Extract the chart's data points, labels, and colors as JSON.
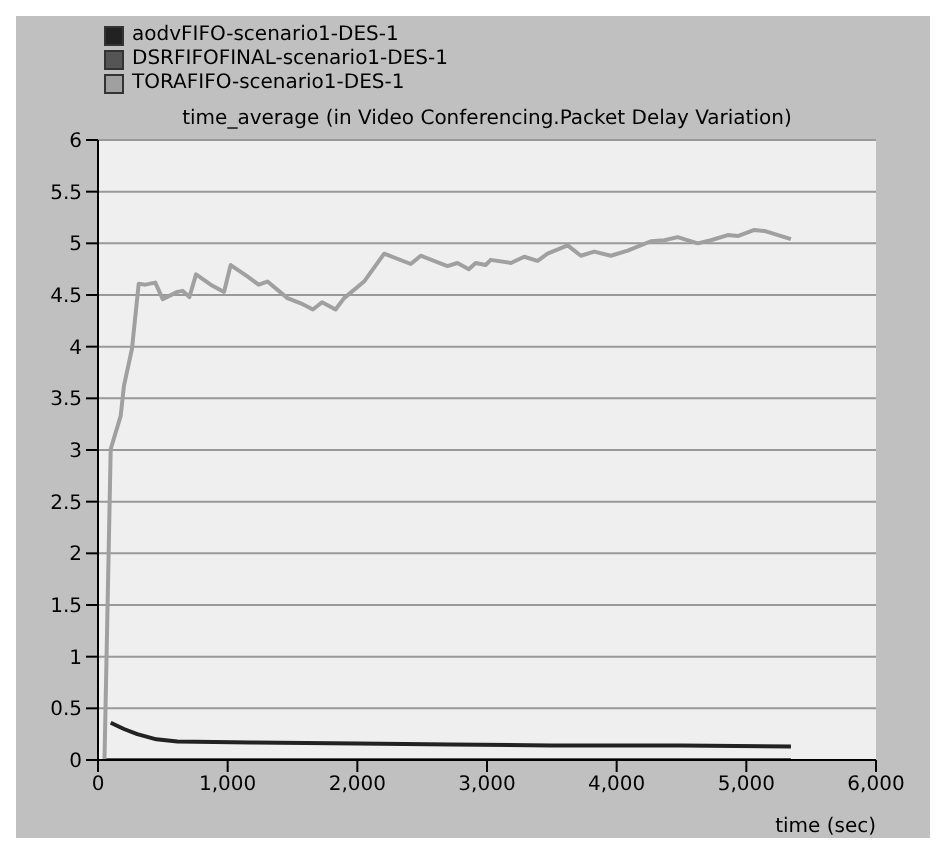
{
  "chart_data": {
    "type": "line",
    "title": "time_average (in Video Conferencing.Packet Delay Variation)",
    "xlabel": "time (sec)",
    "xlim": [
      0,
      6000
    ],
    "xticks": [
      {
        "value": 0,
        "label": "0"
      },
      {
        "value": 1000,
        "label": "1,000"
      },
      {
        "value": 2000,
        "label": "2,000"
      },
      {
        "value": 3000,
        "label": "3,000"
      },
      {
        "value": 4000,
        "label": "4,000"
      },
      {
        "value": 5000,
        "label": "5,000"
      },
      {
        "value": 6000,
        "label": "6,000"
      }
    ],
    "ylim": [
      0,
      6
    ],
    "yticks": [
      0,
      0.5,
      1,
      1.5,
      2,
      2.5,
      3,
      3.5,
      4,
      4.5,
      5,
      5.5,
      6
    ],
    "grid": "y",
    "legend": "top left",
    "marker": "none",
    "line_style": "solid",
    "series": [
      {
        "name": "aodvFIFO-scenario1-DES-1",
        "color": "#222222",
        "x": [
          98,
          200,
          303,
          450,
          612,
          1178,
          2000,
          2721,
          3500,
          4500,
          5344
        ],
        "values": [
          0.36,
          0.3,
          0.25,
          0.2,
          0.18,
          0.17,
          0.16,
          0.15,
          0.14,
          0.14,
          0.13
        ]
      },
      {
        "name": "DSRFIFOFINAL-scenario1-DES-1",
        "color": "#555555",
        "x": [
          50,
          1000,
          2000,
          3000,
          4000,
          5344
        ],
        "values": [
          0,
          0,
          0,
          0,
          0,
          0
        ]
      },
      {
        "name": "TORAFIFO-scenario1-DES-1",
        "color": "#a0a0a0",
        "x": [
          50,
          98,
          175,
          200,
          262,
          314,
          365,
          442,
          499,
          612,
          653,
          705,
          756,
          869,
          972,
          1023,
          1152,
          1239,
          1307,
          1461,
          1564,
          1657,
          1728,
          1832,
          1898,
          2052,
          2207,
          2412,
          2489,
          2695,
          2772,
          2860,
          2912,
          2989,
          3029,
          3184,
          3287,
          3390,
          3467,
          3622,
          3724,
          3827,
          3955,
          4085,
          4264,
          4367,
          4470,
          4625,
          4727,
          4857,
          4934,
          5062,
          5139,
          5344
        ],
        "values": [
          0,
          3.01,
          3.33,
          3.62,
          3.98,
          4.61,
          4.6,
          4.62,
          4.46,
          4.53,
          4.54,
          4.48,
          4.7,
          4.6,
          4.53,
          4.79,
          4.68,
          4.6,
          4.63,
          4.47,
          4.42,
          4.36,
          4.43,
          4.36,
          4.47,
          4.63,
          4.9,
          4.8,
          4.88,
          4.78,
          4.81,
          4.75,
          4.81,
          4.79,
          4.84,
          4.81,
          4.87,
          4.83,
          4.9,
          4.98,
          4.88,
          4.92,
          4.88,
          4.93,
          5.02,
          5.03,
          5.06,
          5,
          5.03,
          5.08,
          5.07,
          5.13,
          5.12,
          5.04
        ]
      }
    ]
  }
}
